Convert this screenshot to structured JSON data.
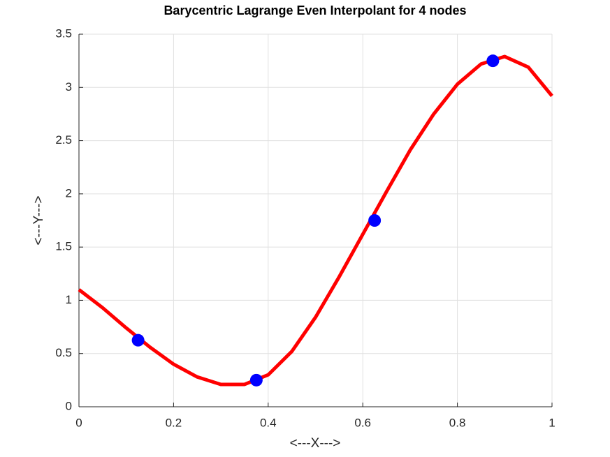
{
  "chart_data": {
    "type": "line",
    "title": "Barycentric Lagrange Even Interpolant for 4 nodes",
    "xlabel": "<---X--->",
    "ylabel": "<---Y--->",
    "xlim": [
      0,
      1
    ],
    "ylim": [
      0,
      3.5
    ],
    "xticks": [
      0,
      0.2,
      0.4,
      0.6,
      0.8,
      1
    ],
    "yticks": [
      0,
      0.5,
      1,
      1.5,
      2,
      2.5,
      3,
      3.5
    ],
    "grid": true,
    "series": [
      {
        "mode": "line",
        "color": "#ff0000",
        "x": [
          0,
          0.05,
          0.1,
          0.125,
          0.15,
          0.2,
          0.25,
          0.3,
          0.35,
          0.4,
          0.45,
          0.5,
          0.55,
          0.6,
          0.65,
          0.7,
          0.75,
          0.8,
          0.85,
          0.9,
          0.95,
          1
        ],
        "values": [
          1.1,
          0.93,
          0.74,
          0.65,
          0.56,
          0.4,
          0.28,
          0.21,
          0.21,
          0.3,
          0.52,
          0.84,
          1.22,
          1.62,
          2.02,
          2.41,
          2.75,
          3.03,
          3.22,
          3.29,
          3.19,
          2.92
        ]
      },
      {
        "mode": "markers",
        "color": "#0000ff",
        "x": [
          0.125,
          0.375,
          0.625,
          0.875
        ],
        "values": [
          0.625,
          0.25,
          1.75,
          3.25
        ]
      }
    ]
  }
}
